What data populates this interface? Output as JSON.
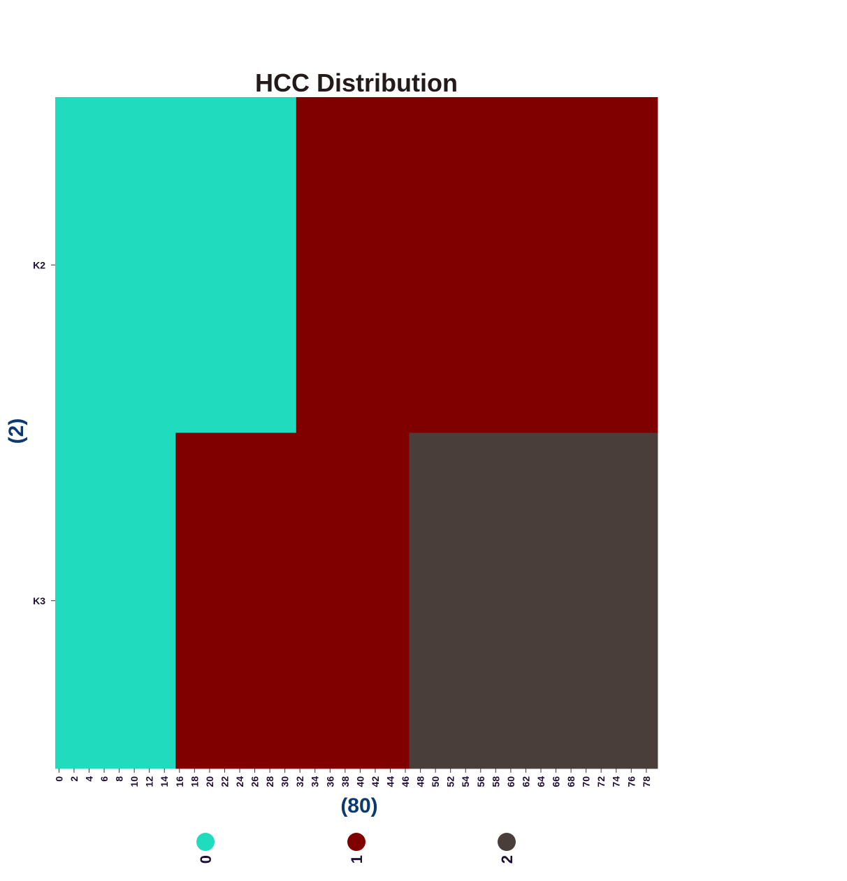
{
  "chart_data": {
    "type": "heatmap",
    "title": "HCC Distribution",
    "xlabel": "(80)",
    "ylabel": "(2)",
    "rows": [
      "K2",
      "K3"
    ],
    "x_count": 80,
    "x_tick_step": 2,
    "segments": [
      {
        "row": "K2",
        "value": 0,
        "x_start": 0,
        "x_end": 31
      },
      {
        "row": "K2",
        "value": 1,
        "x_start": 32,
        "x_end": 79
      },
      {
        "row": "K3",
        "value": 0,
        "x_start": 0,
        "x_end": 15
      },
      {
        "row": "K3",
        "value": 1,
        "x_start": 16,
        "x_end": 46
      },
      {
        "row": "K3",
        "value": 2,
        "x_start": 47,
        "x_end": 79
      }
    ],
    "legend": [
      {
        "label": "0",
        "color": "#20dbbd"
      },
      {
        "label": "1",
        "color": "#800000"
      },
      {
        "label": "2",
        "color": "#4a3e3a"
      }
    ],
    "legend_position": "bottom",
    "grid": false
  }
}
